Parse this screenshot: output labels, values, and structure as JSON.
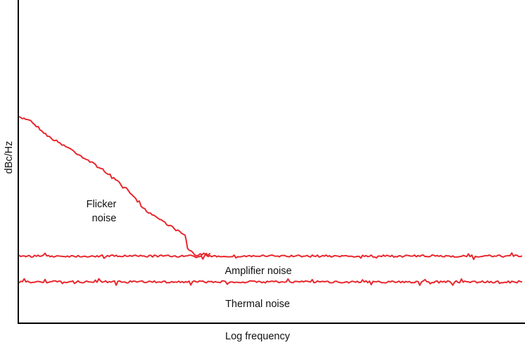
{
  "chart_data": {
    "type": "line",
    "title": "",
    "xlabel": "Log frequency",
    "ylabel": "dBc/Hz",
    "xlim": [
      0,
      100
    ],
    "ylim": [
      0,
      100
    ],
    "x_ticks": "none",
    "y_ticks": "none",
    "grid": false,
    "legend": "none",
    "line_color": "#e8282e",
    "series": [
      {
        "name": "Flicker noise",
        "label_lines": [
          "Flicker",
          "noise"
        ],
        "x": [
          0,
          2,
          6,
          10,
          13,
          17,
          21,
          25,
          29,
          33,
          33.5,
          35,
          37,
          38
        ],
        "y": [
          63.5,
          63,
          57.5,
          54,
          51,
          47,
          42,
          35,
          31,
          27,
          23,
          21,
          21,
          21.5
        ]
      },
      {
        "name": "Amplifier noise",
        "label_lines": [
          "Amplifier noise"
        ],
        "x": [
          0,
          10,
          20,
          30,
          40,
          50,
          60,
          70,
          80,
          90,
          100
        ],
        "y": [
          20.6,
          20.6,
          20.6,
          20.6,
          20.6,
          20.6,
          20.6,
          20.6,
          20.6,
          20.6,
          20.6
        ]
      },
      {
        "name": "Thermal noise",
        "label_lines": [
          "Thermal noise"
        ],
        "x": [
          0,
          10,
          20,
          30,
          40,
          50,
          60,
          70,
          80,
          90,
          100
        ],
        "y": [
          12.6,
          12.6,
          12.6,
          12.6,
          12.6,
          12.6,
          12.6,
          12.6,
          12.6,
          12.6,
          12.6
        ]
      }
    ]
  }
}
